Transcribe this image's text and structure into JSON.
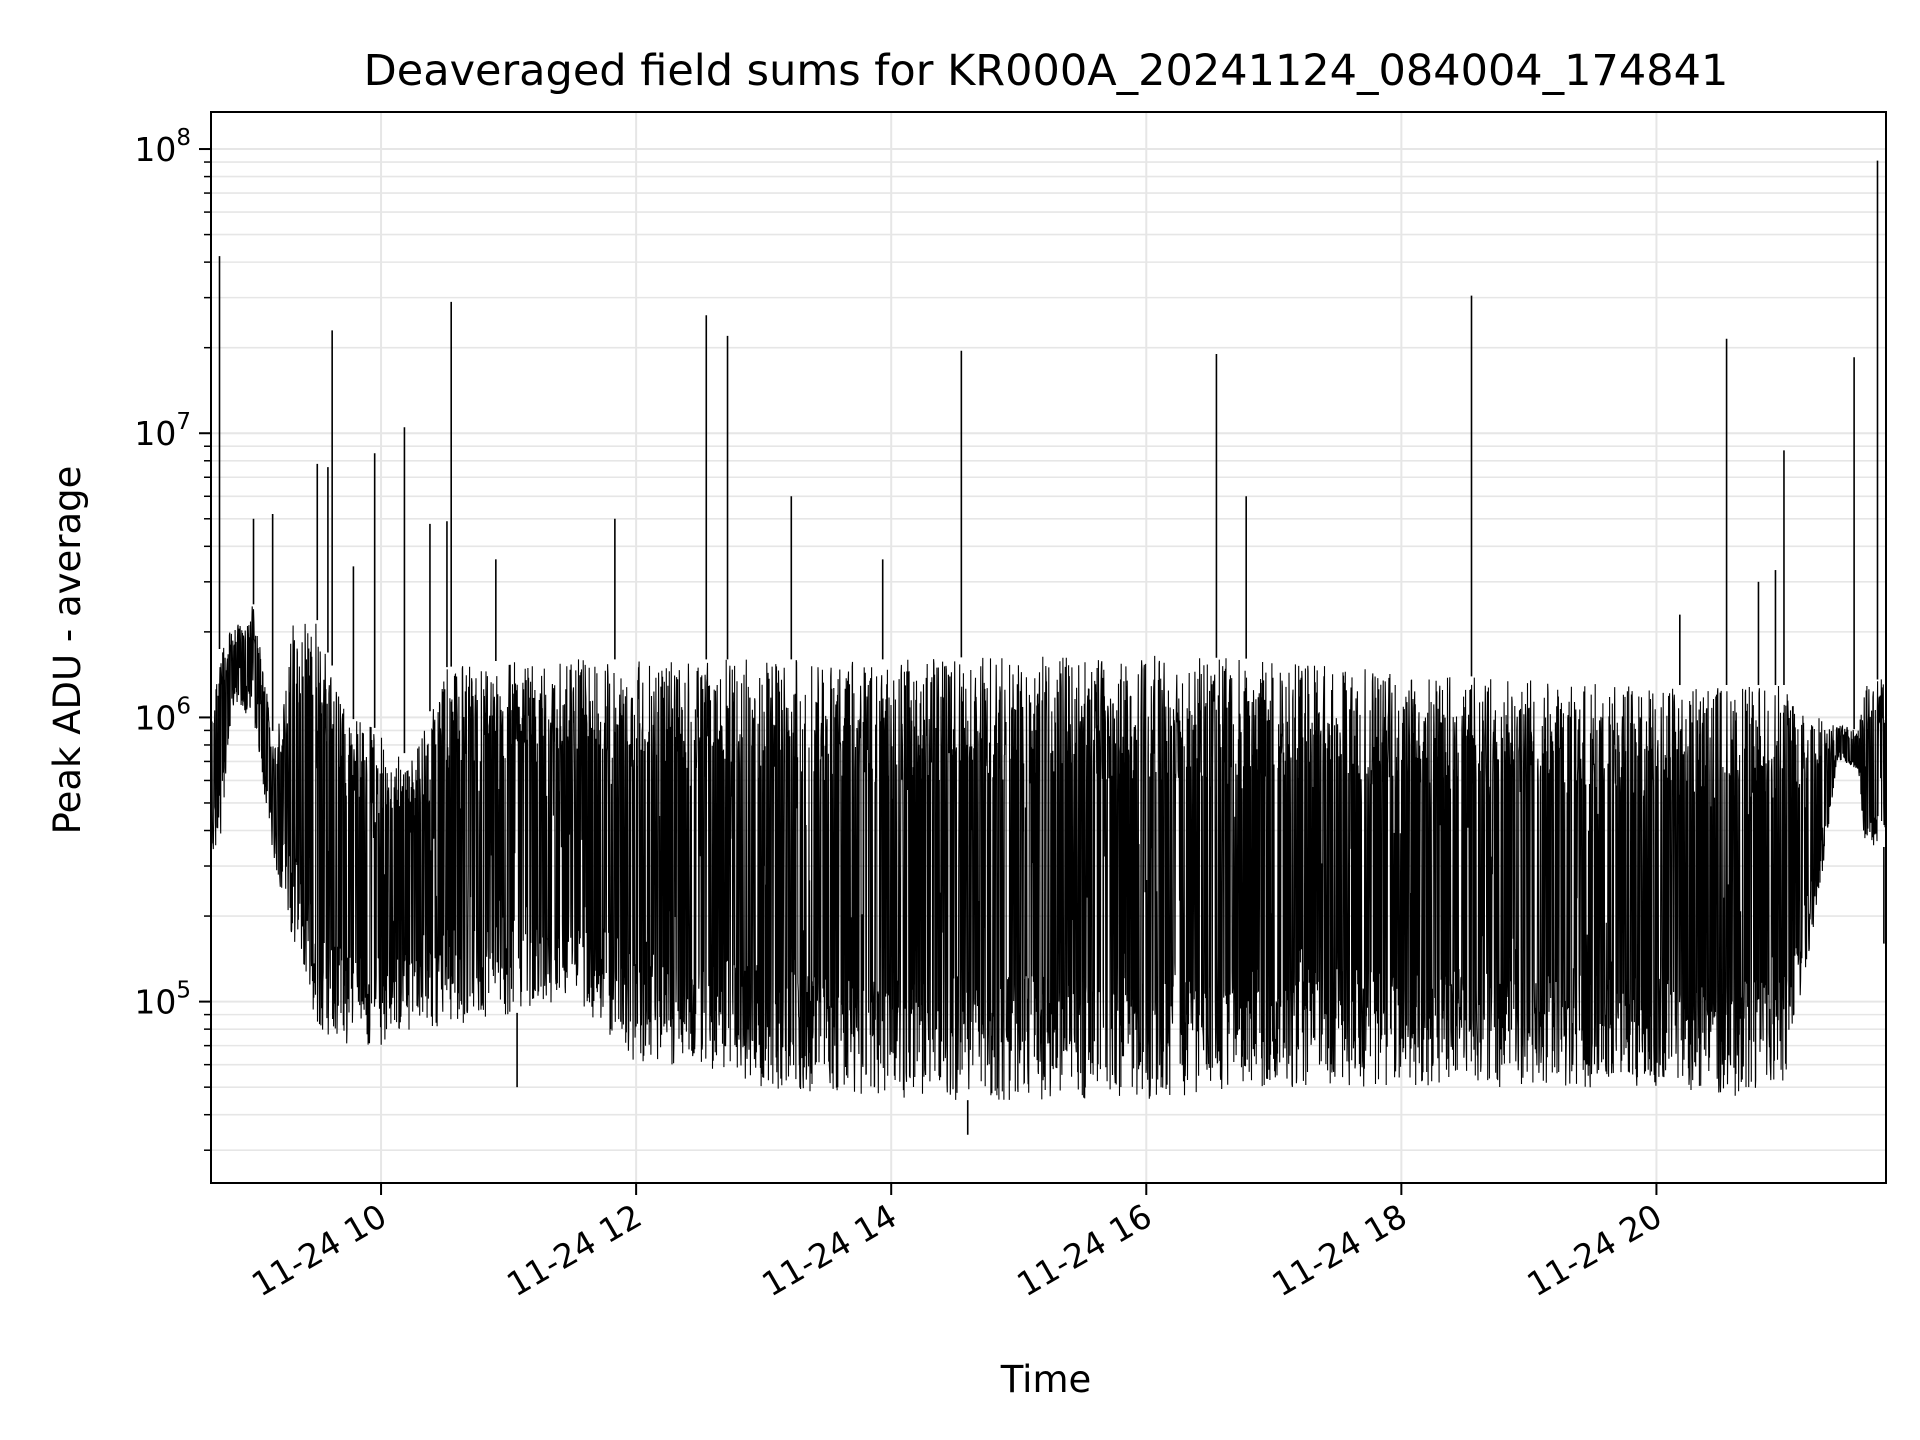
{
  "chart_data": {
    "type": "line",
    "title": "Deaveraged field sums for KR000A_20241124_084004_174841",
    "xlabel": "Time",
    "ylabel": "Peak ADU - average",
    "yscale": "log",
    "xlim": [
      "2024-11-24 08:40",
      "2024-11-24 21:48"
    ],
    "ylim": [
      23000,
      135000000
    ],
    "grid": true,
    "legend": "none",
    "line_color": "#000000",
    "grid_color": "#e6e6e6",
    "x_ticks": [
      {
        "value": "2024-11-24 10:00",
        "label": "11-24 10"
      },
      {
        "value": "2024-11-24 12:00",
        "label": "11-24 12"
      },
      {
        "value": "2024-11-24 14:00",
        "label": "11-24 14"
      },
      {
        "value": "2024-11-24 16:00",
        "label": "11-24 16"
      },
      {
        "value": "2024-11-24 18:00",
        "label": "11-24 18"
      },
      {
        "value": "2024-11-24 20:00",
        "label": "11-24 20"
      }
    ],
    "y_ticks": [
      {
        "value": 100000,
        "base": "10",
        "exp": "5"
      },
      {
        "value": 1000000,
        "base": "10",
        "exp": "6"
      },
      {
        "value": 10000000,
        "base": "10",
        "exp": "7"
      },
      {
        "value": 100000000,
        "base": "10",
        "exp": "8"
      }
    ],
    "envelope": [
      {
        "t": "2024-11-24 08:40",
        "lo": 330000,
        "hi": 1000000
      },
      {
        "t": "2024-11-24 08:45",
        "lo": 380000,
        "hi": 2000000
      },
      {
        "t": "2024-11-24 08:50",
        "lo": 1100000,
        "hi": 2000000
      },
      {
        "t": "2024-11-24 09:00",
        "lo": 1000000,
        "hi": 2500000
      },
      {
        "t": "2024-11-24 09:10",
        "lo": 300000,
        "hi": 800000
      },
      {
        "t": "2024-11-24 09:20",
        "lo": 150000,
        "hi": 2500000
      },
      {
        "t": "2024-11-24 09:30",
        "lo": 80000,
        "hi": 2200000
      },
      {
        "t": "2024-11-24 09:45",
        "lo": 70000,
        "hi": 1000000
      },
      {
        "t": "2024-11-24 10:00",
        "lo": 70000,
        "hi": 900000
      },
      {
        "t": "2024-11-24 10:15",
        "lo": 80000,
        "hi": 700000
      },
      {
        "t": "2024-11-24 10:30",
        "lo": 80000,
        "hi": 1500000
      },
      {
        "t": "2024-11-24 11:00",
        "lo": 90000,
        "hi": 1600000
      },
      {
        "t": "2024-11-24 11:30",
        "lo": 100000,
        "hi": 1600000
      },
      {
        "t": "2024-11-24 12:00",
        "lo": 60000,
        "hi": 1600000
      },
      {
        "t": "2024-11-24 12:30",
        "lo": 60000,
        "hi": 1600000
      },
      {
        "t": "2024-11-24 13:00",
        "lo": 50000,
        "hi": 1600000
      },
      {
        "t": "2024-11-24 14:00",
        "lo": 45000,
        "hi": 1600000
      },
      {
        "t": "2024-11-24 15:00",
        "lo": 45000,
        "hi": 1650000
      },
      {
        "t": "2024-11-24 16:00",
        "lo": 45000,
        "hi": 1650000
      },
      {
        "t": "2024-11-24 17:00",
        "lo": 50000,
        "hi": 1600000
      },
      {
        "t": "2024-11-24 18:00",
        "lo": 50000,
        "hi": 1450000
      },
      {
        "t": "2024-11-24 19:00",
        "lo": 50000,
        "hi": 1350000
      },
      {
        "t": "2024-11-24 20:00",
        "lo": 50000,
        "hi": 1300000
      },
      {
        "t": "2024-11-24 20:30",
        "lo": 45000,
        "hi": 1300000
      },
      {
        "t": "2024-11-24 21:00",
        "lo": 50000,
        "hi": 1300000
      },
      {
        "t": "2024-11-24 21:10",
        "lo": 120000,
        "hi": 1100000
      },
      {
        "t": "2024-11-24 21:20",
        "lo": 350000,
        "hi": 1000000
      },
      {
        "t": "2024-11-24 21:25",
        "lo": 700000,
        "hi": 950000
      },
      {
        "t": "2024-11-24 21:35",
        "lo": 650000,
        "hi": 900000
      },
      {
        "t": "2024-11-24 21:38",
        "lo": 350000,
        "hi": 1300000
      },
      {
        "t": "2024-11-24 21:48",
        "lo": 350000,
        "hi": 1400000
      }
    ],
    "spikes": [
      {
        "t": "2024-11-24 08:44",
        "peak": 42000000
      },
      {
        "t": "2024-11-24 09:00",
        "peak": 5000000
      },
      {
        "t": "2024-11-24 09:09",
        "peak": 5200000
      },
      {
        "t": "2024-11-24 09:30",
        "peak": 7800000
      },
      {
        "t": "2024-11-24 09:35",
        "peak": 7600000
      },
      {
        "t": "2024-11-24 09:37",
        "peak": 23000000
      },
      {
        "t": "2024-11-24 09:47",
        "peak": 3400000
      },
      {
        "t": "2024-11-24 09:57",
        "peak": 8500000
      },
      {
        "t": "2024-11-24 10:11",
        "peak": 10500000
      },
      {
        "t": "2024-11-24 10:23",
        "peak": 4800000
      },
      {
        "t": "2024-11-24 10:31",
        "peak": 4900000
      },
      {
        "t": "2024-11-24 10:33",
        "peak": 29000000
      },
      {
        "t": "2024-11-24 10:54",
        "peak": 3600000
      },
      {
        "t": "2024-11-24 11:50",
        "peak": 5000000
      },
      {
        "t": "2024-11-24 12:33",
        "peak": 26000000
      },
      {
        "t": "2024-11-24 12:43",
        "peak": 22000000
      },
      {
        "t": "2024-11-24 13:13",
        "peak": 6000000
      },
      {
        "t": "2024-11-24 13:56",
        "peak": 3600000
      },
      {
        "t": "2024-11-24 14:33",
        "peak": 19500000
      },
      {
        "t": "2024-11-24 16:33",
        "peak": 19000000
      },
      {
        "t": "2024-11-24 16:47",
        "peak": 6000000
      },
      {
        "t": "2024-11-24 18:33",
        "peak": 30500000
      },
      {
        "t": "2024-11-24 20:11",
        "peak": 2300000
      },
      {
        "t": "2024-11-24 20:33",
        "peak": 21500000
      },
      {
        "t": "2024-11-24 20:48",
        "peak": 3000000
      },
      {
        "t": "2024-11-24 20:56",
        "peak": 3300000
      },
      {
        "t": "2024-11-24 21:00",
        "peak": 8700000
      },
      {
        "t": "2024-11-24 21:33",
        "peak": 18500000
      },
      {
        "t": "2024-11-24 21:44",
        "peak": 91000000
      }
    ],
    "dips": [
      {
        "t": "2024-11-24 11:04",
        "value": 50000
      },
      {
        "t": "2024-11-24 14:36",
        "value": 34000
      },
      {
        "t": "2024-11-24 21:47",
        "value": 160000
      }
    ]
  }
}
